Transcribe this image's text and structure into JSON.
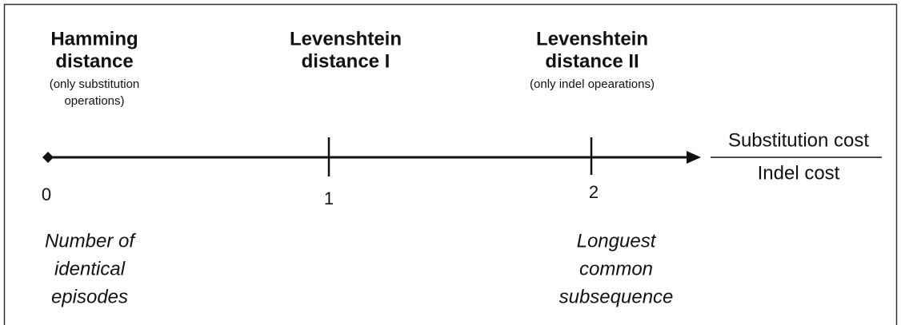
{
  "points": [
    {
      "title": [
        "Hamming",
        "distance"
      ],
      "subtitle": [
        "(only substitution",
        "operations)"
      ],
      "tick": "0",
      "note": [
        "Number of",
        "identical",
        "episodes"
      ]
    },
    {
      "title": [
        "Levenshtein",
        "distance I"
      ],
      "subtitle": [],
      "tick": "1",
      "note": []
    },
    {
      "title": [
        "Levenshtein",
        "distance II"
      ],
      "subtitle": [
        "(only indel opearations)"
      ],
      "tick": "2",
      "note": [
        "Longuest",
        "common",
        "subsequence"
      ]
    }
  ],
  "axis_label": {
    "numerator": "Substitution cost",
    "denominator": "Indel cost"
  }
}
